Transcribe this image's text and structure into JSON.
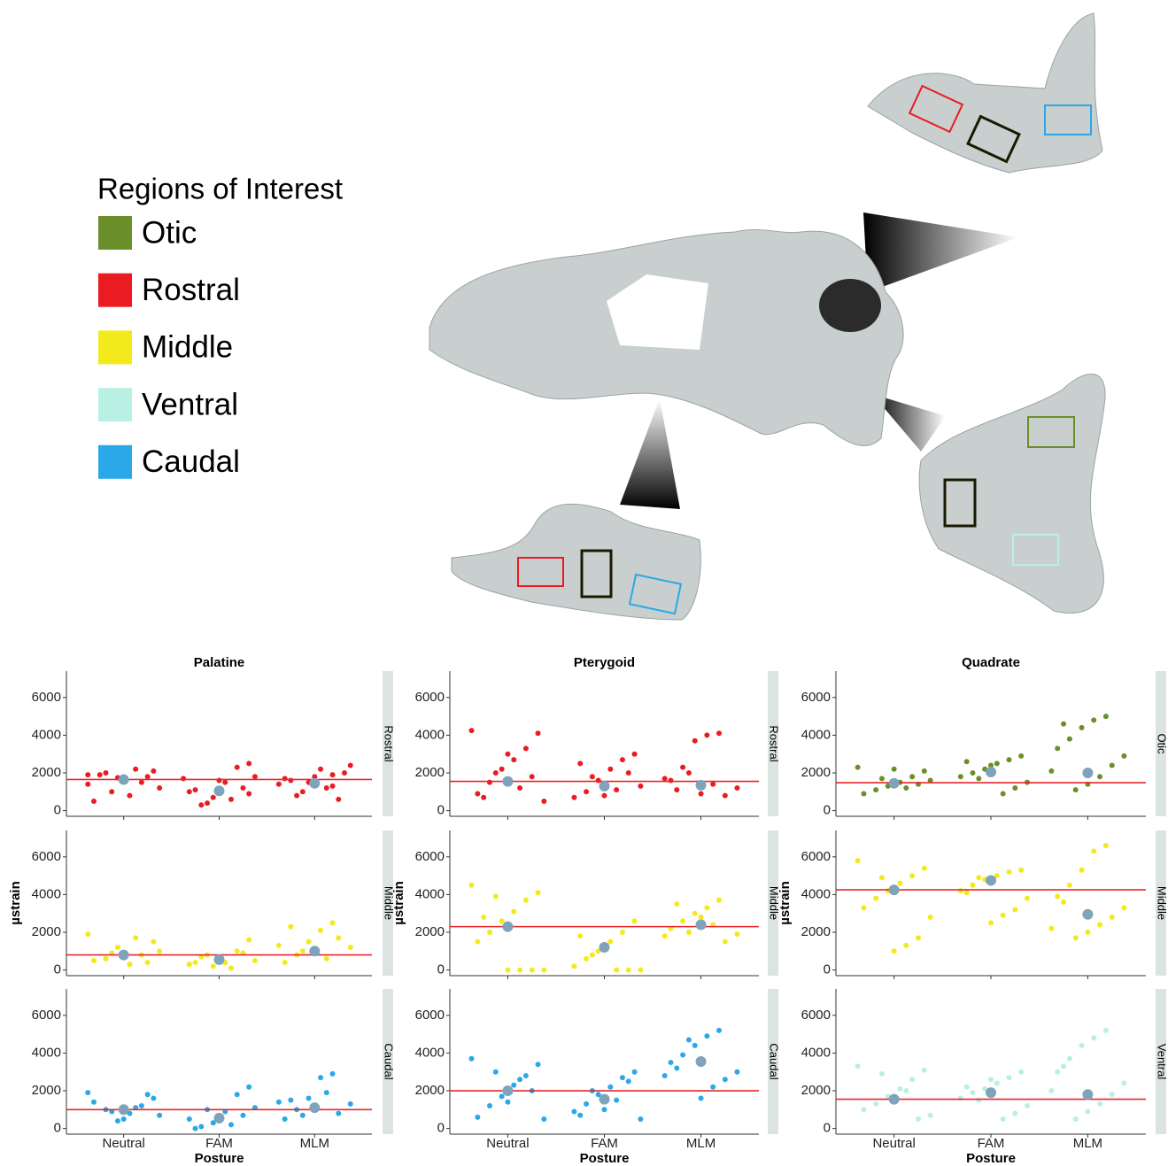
{
  "legend": {
    "title": "Regions of Interest",
    "items": [
      {
        "label": "Otic",
        "color": "#6a8f2a"
      },
      {
        "label": "Rostral",
        "color": "#ea1c22"
      },
      {
        "label": "Middle",
        "color": "#f2ea1c"
      },
      {
        "label": "Ventral",
        "color": "#b8f0e4"
      },
      {
        "label": "Caudal",
        "color": "#2aa8e8"
      }
    ]
  },
  "chart_data": {
    "type": "strip",
    "x_label": "Posture",
    "y_label": "µstrain",
    "categories": [
      "Neutral",
      "FAM",
      "MLM"
    ],
    "ylim": [
      -300,
      7400
    ],
    "yticks": [
      0,
      2000,
      4000,
      6000
    ],
    "mean_color": "#7fa3bb",
    "reference_color": "#e8252b",
    "columns": [
      {
        "title": "Palatine",
        "panels": [
          {
            "strip": "Rostral",
            "color": "#ea1c22",
            "reference": 1650,
            "means": [
              1650,
              1050,
              1450
            ],
            "points": [
              [
                1900,
                2100,
                1500,
                800,
                1750,
                2000,
                500,
                1200,
                1800,
                2200,
                1600,
                1000,
                1900,
                1400
              ],
              [
                2500,
                2300,
                1500,
                700,
                300,
                1000,
                1800,
                1200,
                600,
                1600,
                400,
                1100,
                1700,
                900
              ],
              [
                1900,
                2200,
                1500,
                800,
                1700,
                2400,
                600,
                1200,
                1800,
                1000,
                1600,
                1400,
                2000,
                1300
              ]
            ]
          },
          {
            "strip": "Middle",
            "color": "#f2ea1c",
            "reference": 800,
            "means": [
              800,
              550,
              1000
            ],
            "points": [
              [
                1900,
                1500,
                800,
                300,
                1200,
                600,
                500,
                1000,
                400,
                1700,
                700,
                900
              ],
              [
                1600,
                1000,
                400,
                200,
                700,
                300,
                500,
                900,
                100,
                600,
                800,
                400
              ],
              [
                2500,
                2100,
                1500,
                800,
                400,
                1200,
                1700,
                600,
                900,
                1000,
                2300,
                1300
              ]
            ]
          },
          {
            "strip": "Caudal",
            "color": "#2aa8e8",
            "reference": 1000,
            "means": [
              1000,
              550,
              1100
            ],
            "points": [
              [
                1900,
                1600,
                1200,
                800,
                400,
                1000,
                1400,
                700,
                1800,
                1100,
                500,
                900
              ],
              [
                2200,
                1800,
                900,
                300,
                100,
                500,
                1100,
                700,
                200,
                400,
                1000,
                0
              ],
              [
                2900,
                2700,
                1600,
                1000,
                500,
                1300,
                800,
                1900,
                1200,
                700,
                1500,
                1400
              ]
            ]
          }
        ]
      },
      {
        "title": "Pterygoid",
        "panels": [
          {
            "strip": "Rostral",
            "color": "#ea1c22",
            "reference": 1550,
            "means": [
              1550,
              1300,
              1350
            ],
            "points": [
              [
                4250,
                4100,
                3300,
                2700,
                2200,
                1500,
                900,
                500,
                1800,
                1200,
                3000,
                2000,
                700
              ],
              [
                3000,
                2700,
                2200,
                1600,
                1000,
                700,
                1300,
                2000,
                1100,
                800,
                1800,
                2500
              ],
              [
                4100,
                4000,
                3700,
                2300,
                1600,
                1200,
                800,
                1400,
                900,
                2000,
                1100,
                1700
              ]
            ]
          },
          {
            "strip": "Middle",
            "color": "#f2ea1c",
            "reference": 2300,
            "means": [
              2300,
              1200,
              2400
            ],
            "points": [
              [
                4500,
                4100,
                3700,
                3100,
                2600,
                2000,
                1500,
                0,
                0,
                0,
                0,
                3900,
                2800
              ],
              [
                2600,
                2000,
                1500,
                1000,
                600,
                200,
                0,
                0,
                0,
                1300,
                800,
                1800
              ],
              [
                3700,
                3300,
                3000,
                2600,
                2200,
                1900,
                1500,
                2400,
                2800,
                2000,
                3500,
                1800
              ]
            ]
          },
          {
            "strip": "Caudal",
            "color": "#2aa8e8",
            "reference": 2000,
            "means": [
              2000,
              1550,
              3550
            ],
            "points": [
              [
                3700,
                3400,
                2800,
                2300,
                1700,
                1200,
                600,
                500,
                2000,
                2600,
                1400,
                3000
              ],
              [
                3000,
                2700,
                2200,
                1800,
                1300,
                900,
                500,
                2500,
                1500,
                1000,
                2000,
                700
              ],
              [
                5200,
                4900,
                4400,
                3900,
                3500,
                3000,
                2600,
                2200,
                1600,
                4700,
                3200,
                2800
              ]
            ]
          }
        ]
      },
      {
        "title": "Quadrate",
        "panels": [
          {
            "strip": "Otic",
            "color": "#6a8f2a",
            "reference": 1480,
            "means": [
              1450,
              2050,
              2000
            ],
            "points": [
              [
                2300,
                2100,
                1800,
                1500,
                1300,
                1100,
                900,
                1600,
                1400,
                1200,
                2200,
                1700
              ],
              [
                2900,
                2700,
                2500,
                2200,
                2000,
                1800,
                1500,
                1200,
                900,
                2400,
                1700,
                2600
              ],
              [
                5000,
                4800,
                4400,
                3800,
                3300,
                2900,
                2400,
                1800,
                1400,
                1100,
                4600,
                2100
              ]
            ]
          },
          {
            "strip": "Middle",
            "color": "#f2ea1c",
            "reference": 4250,
            "means": [
              4250,
              4750,
              2950
            ],
            "points": [
              [
                5800,
                5400,
                5000,
                4600,
                4200,
                3800,
                3300,
                2800,
                1700,
                1300,
                1000,
                4900
              ],
              [
                5300,
                5200,
                5000,
                4800,
                4500,
                4200,
                3800,
                3200,
                2900,
                2500,
                4900,
                4100
              ],
              [
                6600,
                6300,
                5300,
                4500,
                3900,
                3300,
                2800,
                2400,
                2000,
                1700,
                3600,
                2200
              ]
            ]
          },
          {
            "strip": "Ventral",
            "color": "#b8f0e4",
            "reference": 1550,
            "means": [
              1550,
              1900,
              1800
            ],
            "points": [
              [
                3300,
                3100,
                2600,
                2100,
                1700,
                1300,
                1000,
                700,
                500,
                2000,
                1500,
                2900
              ],
              [
                3000,
                2700,
                2400,
                2100,
                1900,
                1600,
                1200,
                800,
                500,
                2600,
                1500,
                2200
              ],
              [
                5200,
                4800,
                4400,
                3700,
                3000,
                2400,
                1800,
                1300,
                900,
                500,
                3300,
                2000
              ]
            ]
          }
        ]
      }
    ]
  }
}
